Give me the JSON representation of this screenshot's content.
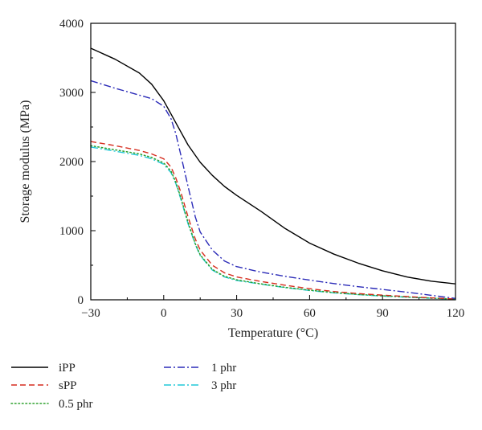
{
  "chart_data": {
    "type": "line",
    "xlabel": "Temperature (°C)",
    "ylabel": "Storage modulus (MPa)",
    "xlim": [
      -30,
      120
    ],
    "ylim": [
      0,
      4000
    ],
    "xticks": [
      -30,
      0,
      30,
      60,
      90,
      120
    ],
    "yticks": [
      0,
      1000,
      2000,
      3000,
      4000
    ],
    "grid": false,
    "legend_placement": "bottom",
    "series": [
      {
        "name": "iPP",
        "color": "#000000",
        "dash": "solid",
        "x": [
          -30,
          -20,
          -10,
          -5,
          0,
          5,
          10,
          15,
          20,
          25,
          30,
          40,
          50,
          60,
          70,
          80,
          90,
          100,
          110,
          120
        ],
        "y": [
          3640,
          3480,
          3280,
          3120,
          2880,
          2560,
          2240,
          1990,
          1800,
          1640,
          1510,
          1280,
          1030,
          820,
          660,
          530,
          420,
          330,
          270,
          230
        ]
      },
      {
        "name": "sPP",
        "color": "#d62c1e",
        "dash": "dash",
        "x": [
          -30,
          -20,
          -10,
          -5,
          0,
          3,
          5,
          7,
          10,
          13,
          15,
          20,
          25,
          30,
          40,
          50,
          60,
          70,
          80,
          90,
          100,
          110,
          120
        ],
        "y": [
          2290,
          2230,
          2160,
          2110,
          2040,
          1920,
          1760,
          1560,
          1200,
          880,
          720,
          500,
          390,
          330,
          265,
          210,
          160,
          120,
          90,
          68,
          48,
          28,
          12
        ]
      },
      {
        "name": "0.5 phr",
        "color": "#2ca02c",
        "dash": "dot",
        "x": [
          -30,
          -20,
          -10,
          -5,
          0,
          3,
          5,
          7,
          10,
          13,
          15,
          20,
          25,
          30,
          40,
          50,
          60,
          70,
          80,
          90,
          100,
          110,
          120
        ],
        "y": [
          2230,
          2170,
          2110,
          2060,
          1980,
          1860,
          1700,
          1480,
          1120,
          810,
          650,
          440,
          340,
          290,
          230,
          180,
          140,
          105,
          78,
          58,
          40,
          24,
          10
        ]
      },
      {
        "name": "1 phr",
        "color": "#2b2bb8",
        "dash": "dashdot",
        "x": [
          -30,
          -20,
          -10,
          -5,
          0,
          3,
          5,
          7,
          10,
          13,
          15,
          20,
          25,
          30,
          40,
          50,
          60,
          70,
          80,
          90,
          100,
          110,
          120
        ],
        "y": [
          3170,
          3060,
          2960,
          2910,
          2800,
          2620,
          2400,
          2100,
          1640,
          1200,
          980,
          720,
          560,
          480,
          400,
          340,
          285,
          235,
          190,
          150,
          110,
          65,
          20
        ]
      },
      {
        "name": "3 phr",
        "color": "#22c8d8",
        "dash": "dashdot",
        "x": [
          -30,
          -20,
          -10,
          -5,
          0,
          3,
          5,
          7,
          10,
          13,
          15,
          20,
          25,
          30,
          40,
          50,
          60,
          70,
          80,
          90,
          100,
          110,
          120
        ],
        "y": [
          2210,
          2150,
          2090,
          2040,
          1960,
          1840,
          1680,
          1460,
          1100,
          800,
          640,
          430,
          330,
          280,
          225,
          175,
          135,
          100,
          74,
          54,
          38,
          22,
          8
        ]
      }
    ],
    "legend_order": [
      "iPP",
      "1 phr",
      "sPP",
      "3 phr",
      "0.5 phr"
    ]
  }
}
